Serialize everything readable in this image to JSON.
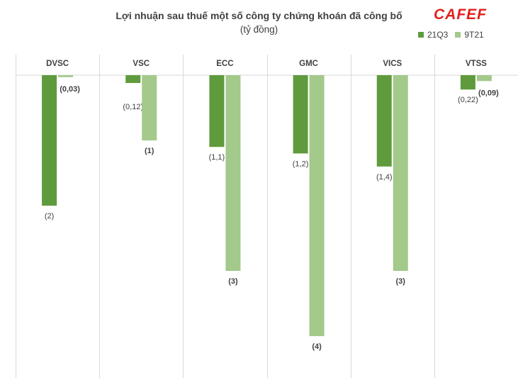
{
  "chart_data": {
    "type": "bar",
    "title": "Lợi nhuận sau thuế một số công ty chứng khoán đã công bố",
    "subtitle": "(tỷ đồng)",
    "categories": [
      "DVSC",
      "VSC",
      "ECC",
      "GMC",
      "VICS",
      "VTSS"
    ],
    "series": [
      {
        "name": "21Q3",
        "values": [
          -2,
          -0.12,
          -1.1,
          -1.2,
          -1.4,
          -0.22
        ],
        "labels": [
          "(2)",
          "(0,12)",
          "(1,1)",
          "(1,2)",
          "(1,4)",
          "(0,22)"
        ],
        "color": "#5f9b3c"
      },
      {
        "name": "9T21",
        "values": [
          -0.03,
          -1,
          -3,
          -4,
          -3,
          -0.09
        ],
        "labels": [
          "(0,03)",
          "(1)",
          "(3)",
          "(4)",
          "(3)",
          "(0,09)"
        ],
        "color": "#a3c98b"
      }
    ],
    "legend_position": "top-right",
    "grid": false,
    "category_dividers": true
  },
  "logo": {
    "text": "CAFEF",
    "color": "#e0201c"
  }
}
